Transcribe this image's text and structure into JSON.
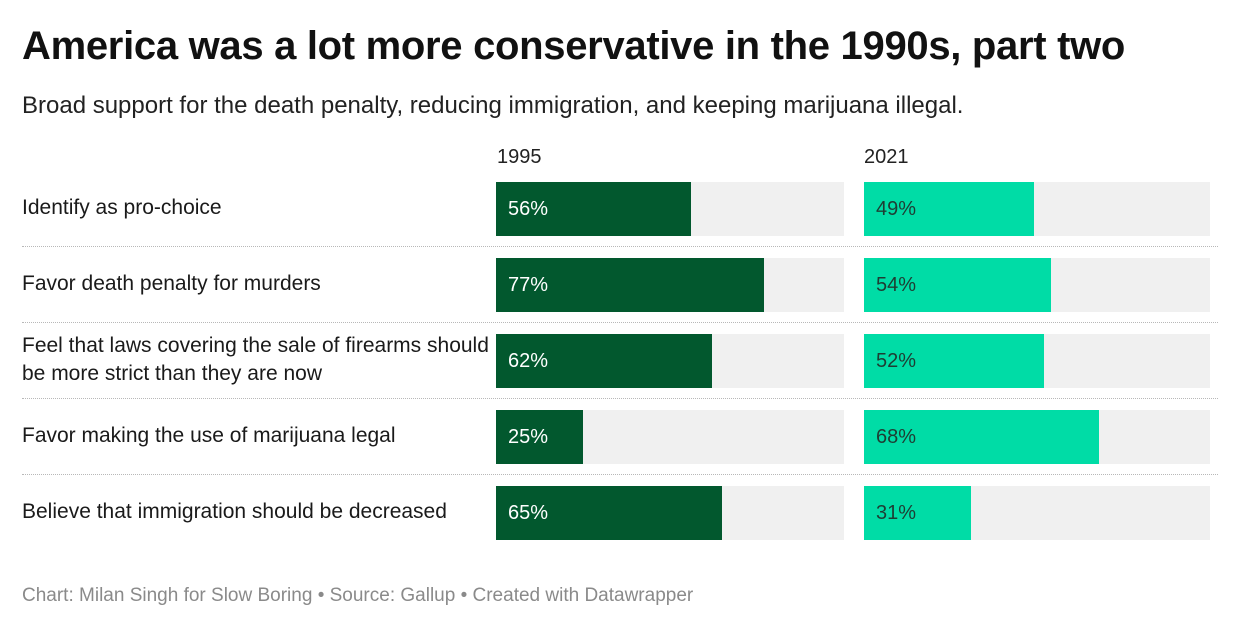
{
  "title": "America was a lot more conservative in the 1990s, part two",
  "subtitle": "Broad support for the death penalty, reducing immigration, and keeping marijuana illegal.",
  "footer": "Chart: Milan Singh for Slow Boring • Source: Gallup • Created with Datawrapper",
  "colors": {
    "series_1995": "#02582e",
    "series_2021": "#00dca6",
    "track": "#f0f0f0"
  },
  "chart_data": {
    "type": "bar",
    "orientation": "horizontal",
    "unit": "%",
    "xlim": [
      0,
      100
    ],
    "categories": [
      "Identify as pro-choice",
      "Favor death penalty for murders",
      "Feel that laws covering the sale of firearms should be more strict than they are now",
      "Favor making the use of marijuana legal",
      "Believe that immigration should be decreased"
    ],
    "series": [
      {
        "name": "1995",
        "values": [
          56,
          77,
          62,
          25,
          65
        ]
      },
      {
        "name": "2021",
        "values": [
          49,
          54,
          52,
          68,
          31
        ]
      }
    ]
  }
}
